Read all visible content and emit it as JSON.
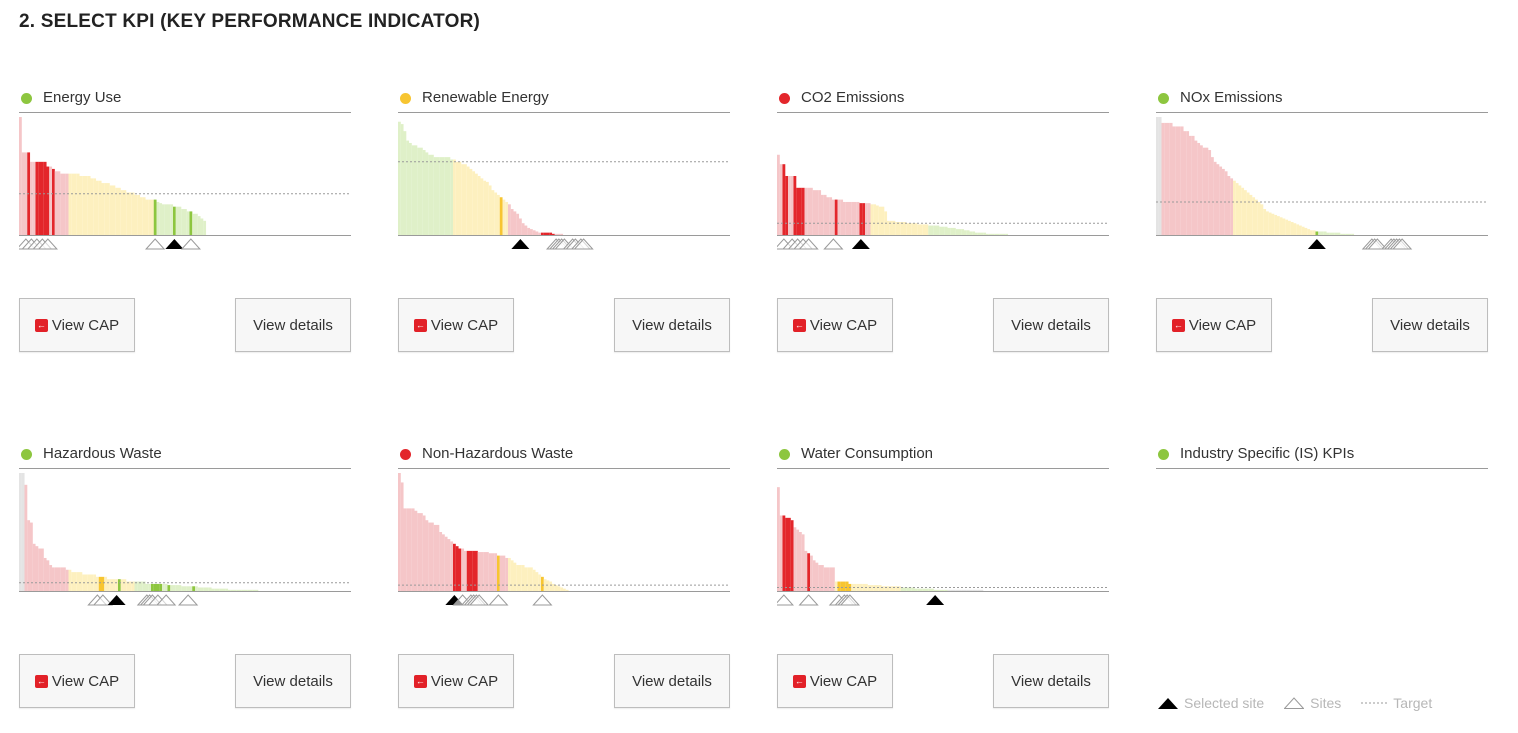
{
  "page": {
    "section_title": "2. SELECT KPI (KEY PERFORMANCE INDICATOR)"
  },
  "colors": {
    "good": "#8dc63f",
    "warn": "#f7c531",
    "bad": "#e3262b",
    "good_bg": "#dff0c8",
    "warn_bg": "#fdf0bf",
    "bad_bg": "#f5c6c8",
    "grey_bg": "#e4e4e4"
  },
  "legend": {
    "selected": "Selected site",
    "sites": "Sites",
    "target": "Target"
  },
  "kpis": [
    {
      "name": "Energy Use",
      "status": "good",
      "cap_label": "View CAP",
      "details_label": "View details",
      "chart_data": {
        "type": "bar",
        "values": [
          100,
          70,
          70,
          70,
          62,
          62,
          62,
          62,
          62,
          62,
          58,
          58,
          56,
          54,
          54,
          52,
          52,
          52,
          52,
          52,
          52,
          52,
          50,
          50,
          50,
          50,
          48,
          48,
          46,
          46,
          44,
          44,
          44,
          42,
          42,
          40,
          40,
          38,
          38,
          36,
          36,
          36,
          34,
          34,
          32,
          32,
          30,
          30,
          30,
          30,
          28,
          27,
          26,
          26,
          26,
          26,
          24,
          24,
          24,
          22,
          22,
          20,
          20,
          18,
          18,
          16,
          14,
          12
        ],
        "zones": [
          {
            "end": 18,
            "color": "bad"
          },
          {
            "end": 49,
            "color": "warn"
          },
          {
            "end": 68,
            "color": "good"
          }
        ],
        "highlights": [
          3,
          6,
          7,
          8,
          9,
          10,
          12,
          49,
          56,
          62
        ],
        "target": 35,
        "markers": [
          {
            "i": 2,
            "type": "site"
          },
          {
            "i": 4,
            "type": "site"
          },
          {
            "i": 6,
            "type": "site"
          },
          {
            "i": 8,
            "type": "site"
          },
          {
            "i": 10,
            "type": "site"
          },
          {
            "i": 49,
            "type": "site"
          },
          {
            "i": 56,
            "type": "selected"
          },
          {
            "i": 62,
            "type": "site"
          }
        ]
      }
    },
    {
      "name": "Renewable Energy",
      "status": "warn",
      "cap_label": "View CAP",
      "details_label": "View details",
      "chart_data": {
        "type": "bar",
        "values": [
          96,
          94,
          88,
          80,
          78,
          76,
          76,
          74,
          74,
          72,
          70,
          68,
          68,
          66,
          66,
          66,
          66,
          66,
          66,
          64,
          64,
          62,
          62,
          60,
          60,
          58,
          56,
          54,
          52,
          50,
          48,
          46,
          45,
          42,
          38,
          36,
          34,
          32,
          30,
          28,
          26,
          22,
          20,
          18,
          14,
          10,
          8,
          6,
          5,
          4,
          3,
          2,
          2,
          2,
          2,
          2,
          1,
          1,
          1,
          1
        ],
        "zones": [
          {
            "end": 20,
            "color": "good"
          },
          {
            "end": 40,
            "color": "warn"
          },
          {
            "end": 60,
            "color": "bad"
          }
        ],
        "highlights": [
          [
            37,
            "warn"
          ],
          [
            52,
            "bad"
          ],
          [
            53,
            "bad"
          ],
          [
            54,
            "bad"
          ],
          [
            55,
            "bad"
          ],
          [
            56,
            "bad"
          ]
        ],
        "target": 62,
        "markers": [
          {
            "i": 44,
            "type": "selected"
          },
          {
            "i": 57,
            "type": "site"
          },
          {
            "i": 58,
            "type": "site"
          },
          {
            "i": 59,
            "type": "site"
          },
          {
            "i": 60,
            "type": "site"
          },
          {
            "i": 63,
            "type": "site"
          },
          {
            "i": 64,
            "type": "site"
          },
          {
            "i": 66,
            "type": "site"
          },
          {
            "i": 67,
            "type": "site"
          }
        ]
      }
    },
    {
      "name": "CO2 Emissions",
      "status": "bad",
      "cap_label": "View CAP",
      "details_label": "View details",
      "chart_data": {
        "type": "bar",
        "values": [
          68,
          60,
          60,
          50,
          50,
          50,
          50,
          40,
          40,
          40,
          40,
          40,
          40,
          38,
          38,
          38,
          34,
          34,
          32,
          32,
          30,
          30,
          30,
          30,
          28,
          28,
          28,
          28,
          28,
          28,
          27,
          27,
          27,
          27,
          26,
          26,
          25,
          24,
          24,
          20,
          12,
          12,
          12,
          11,
          11,
          11,
          11,
          10,
          10,
          10,
          10,
          9,
          9,
          9,
          9,
          8,
          8,
          8,
          8,
          7,
          7,
          7,
          6,
          6,
          6,
          5,
          5,
          5,
          4,
          4,
          3,
          3,
          2,
          2,
          2,
          2,
          1,
          1,
          1,
          1,
          1,
          1,
          1,
          1
        ],
        "zones": [
          {
            "end": 34,
            "color": "bad"
          },
          {
            "end": 55,
            "color": "warn"
          },
          {
            "end": 84,
            "color": "good"
          }
        ],
        "highlights": [
          2,
          3,
          6,
          7,
          8,
          9,
          21,
          30,
          31
        ],
        "target": 10,
        "markers": [
          {
            "i": 2,
            "type": "site"
          },
          {
            "i": 5,
            "type": "site"
          },
          {
            "i": 7,
            "type": "site"
          },
          {
            "i": 9,
            "type": "site"
          },
          {
            "i": 11,
            "type": "site"
          },
          {
            "i": 20,
            "type": "site"
          },
          {
            "i": 30,
            "type": "selected"
          }
        ]
      }
    },
    {
      "name": "NOx Emissions",
      "status": "good",
      "cap_label": "View CAP",
      "details_label": "View details",
      "chart_data": {
        "type": "bar",
        "values": [
          100,
          100,
          95,
          95,
          95,
          95,
          92,
          92,
          92,
          92,
          88,
          88,
          84,
          84,
          80,
          78,
          76,
          74,
          74,
          72,
          66,
          62,
          60,
          58,
          56,
          54,
          50,
          48,
          46,
          44,
          42,
          40,
          38,
          36,
          34,
          32,
          30,
          28,
          26,
          22,
          20,
          19,
          18,
          17,
          16,
          15,
          14,
          13,
          12,
          11,
          10,
          9,
          8,
          7,
          6,
          5,
          4,
          4,
          3,
          3,
          3,
          3,
          2,
          2,
          2,
          2,
          2,
          1,
          1,
          1,
          1,
          1
        ],
        "zones": [
          {
            "end": 2,
            "color": "grey"
          },
          {
            "end": 28,
            "color": "bad"
          },
          {
            "end": 58,
            "color": "warn"
          },
          {
            "end": 100,
            "color": "good"
          }
        ],
        "highlights": [
          58,
          79,
          80,
          81,
          87,
          88,
          89
        ],
        "target": 28,
        "markers": [
          {
            "i": 58,
            "type": "selected"
          },
          {
            "i": 78,
            "type": "site"
          },
          {
            "i": 79,
            "type": "site"
          },
          {
            "i": 80,
            "type": "site"
          },
          {
            "i": 85,
            "type": "site"
          },
          {
            "i": 86,
            "type": "site"
          },
          {
            "i": 87,
            "type": "site"
          },
          {
            "i": 88,
            "type": "site"
          },
          {
            "i": 89,
            "type": "site"
          }
        ]
      }
    },
    {
      "name": "Hazardous Waste",
      "status": "good",
      "cap_label": "View CAP",
      "details_label": "View details",
      "chart_data": {
        "type": "bar",
        "values": [
          100,
          100,
          90,
          60,
          58,
          40,
          38,
          36,
          36,
          28,
          26,
          22,
          20,
          20,
          20,
          20,
          20,
          18,
          18,
          16,
          16,
          16,
          16,
          14,
          14,
          14,
          14,
          14,
          12,
          12,
          12,
          12,
          10,
          10,
          10,
          10,
          10,
          10,
          10,
          8,
          8,
          8,
          8,
          8,
          8,
          8,
          6,
          6,
          6,
          6,
          6,
          6,
          6,
          6,
          5,
          5,
          5,
          5,
          5,
          4,
          4,
          4,
          4,
          4,
          4,
          3,
          3,
          3,
          3,
          3,
          2,
          2,
          2,
          2,
          2,
          2,
          1,
          1,
          1,
          1,
          1,
          1,
          1,
          1,
          1,
          1,
          1
        ],
        "zones": [
          {
            "end": 2,
            "color": "grey"
          },
          {
            "end": 18,
            "color": "bad"
          },
          {
            "end": 42,
            "color": "warn"
          },
          {
            "end": 90,
            "color": "good"
          }
        ],
        "highlights": [
          [
            29,
            "warn"
          ],
          [
            30,
            "warn"
          ],
          [
            36,
            "good"
          ],
          [
            48,
            "good"
          ],
          [
            49,
            "good"
          ],
          [
            50,
            "good"
          ],
          [
            51,
            "good"
          ],
          [
            54,
            "good"
          ],
          [
            63,
            "good"
          ]
        ],
        "target": 7,
        "markers": [
          {
            "i": 28,
            "type": "site"
          },
          {
            "i": 30,
            "type": "site"
          },
          {
            "i": 35,
            "type": "selected"
          },
          {
            "i": 46,
            "type": "site"
          },
          {
            "i": 47,
            "type": "site"
          },
          {
            "i": 48,
            "type": "site"
          },
          {
            "i": 50,
            "type": "site"
          },
          {
            "i": 53,
            "type": "site"
          },
          {
            "i": 61,
            "type": "site"
          }
        ]
      }
    },
    {
      "name": "Non-Hazardous Waste",
      "status": "bad",
      "cap_label": "View CAP",
      "details_label": "View details",
      "chart_data": {
        "type": "bar",
        "values": [
          100,
          92,
          70,
          70,
          70,
          70,
          68,
          66,
          66,
          64,
          60,
          58,
          58,
          56,
          56,
          50,
          48,
          46,
          44,
          42,
          40,
          38,
          36,
          36,
          34,
          34,
          34,
          34,
          34,
          33,
          33,
          33,
          33,
          32,
          32,
          32,
          30,
          30,
          30,
          28,
          28,
          26,
          24,
          22,
          22,
          22,
          20,
          20,
          20,
          18,
          16,
          14,
          12,
          10,
          9,
          8,
          6,
          5,
          4,
          3,
          2,
          1
        ],
        "zones": [
          {
            "end": 40,
            "color": "bad"
          },
          {
            "end": 70,
            "color": "warn"
          },
          {
            "end": 85,
            "color": "good"
          }
        ],
        "highlights": [
          [
            20,
            "bad"
          ],
          [
            21,
            "bad"
          ],
          [
            22,
            "bad"
          ],
          [
            25,
            "bad"
          ],
          [
            26,
            "bad"
          ],
          [
            27,
            "bad"
          ],
          [
            28,
            "bad"
          ],
          [
            36,
            "warn"
          ],
          [
            52,
            "warn"
          ]
        ],
        "target": 5,
        "markers": [
          {
            "i": 20,
            "type": "selected"
          },
          {
            "i": 23,
            "type": "site"
          },
          {
            "i": 26,
            "type": "site"
          },
          {
            "i": 27,
            "type": "site"
          },
          {
            "i": 28,
            "type": "site"
          },
          {
            "i": 29,
            "type": "site"
          },
          {
            "i": 36,
            "type": "site"
          },
          {
            "i": 52,
            "type": "site"
          }
        ]
      }
    },
    {
      "name": "Water Consumption",
      "status": "good",
      "cap_label": "View CAP",
      "details_label": "View details",
      "chart_data": {
        "type": "bar",
        "values": [
          88,
          64,
          64,
          62,
          62,
          60,
          54,
          52,
          50,
          48,
          34,
          32,
          30,
          26,
          24,
          22,
          22,
          20,
          20,
          20,
          20,
          8,
          8,
          8,
          8,
          8,
          6,
          6,
          6,
          6,
          6,
          6,
          6,
          5,
          5,
          5,
          5,
          5,
          4,
          4,
          4,
          4,
          4,
          4,
          4,
          3,
          3,
          3,
          3,
          3,
          2,
          2,
          2,
          2,
          2,
          2,
          2,
          1,
          1,
          1,
          1,
          1,
          1,
          1,
          1,
          1,
          1,
          1,
          1,
          1,
          1,
          1,
          1,
          1,
          1
        ],
        "zones": [
          {
            "end": 21,
            "color": "bad"
          },
          {
            "end": 45,
            "color": "warn"
          },
          {
            "end": 62,
            "color": "good"
          },
          {
            "end": 75,
            "color": "grey"
          }
        ],
        "highlights": [
          2,
          3,
          4,
          5,
          11,
          22,
          23,
          24,
          25,
          26
        ],
        "target": 3,
        "markers": [
          {
            "i": 2,
            "type": "site"
          },
          {
            "i": 11,
            "type": "site"
          },
          {
            "i": 22,
            "type": "site"
          },
          {
            "i": 24,
            "type": "site"
          },
          {
            "i": 25,
            "type": "site"
          },
          {
            "i": 26,
            "type": "site"
          },
          {
            "i": 57,
            "type": "selected"
          }
        ]
      }
    },
    {
      "name": "Industry Specific (IS) KPIs",
      "status": "good",
      "cap_label": "",
      "details_label": "",
      "chart_data": null
    }
  ]
}
